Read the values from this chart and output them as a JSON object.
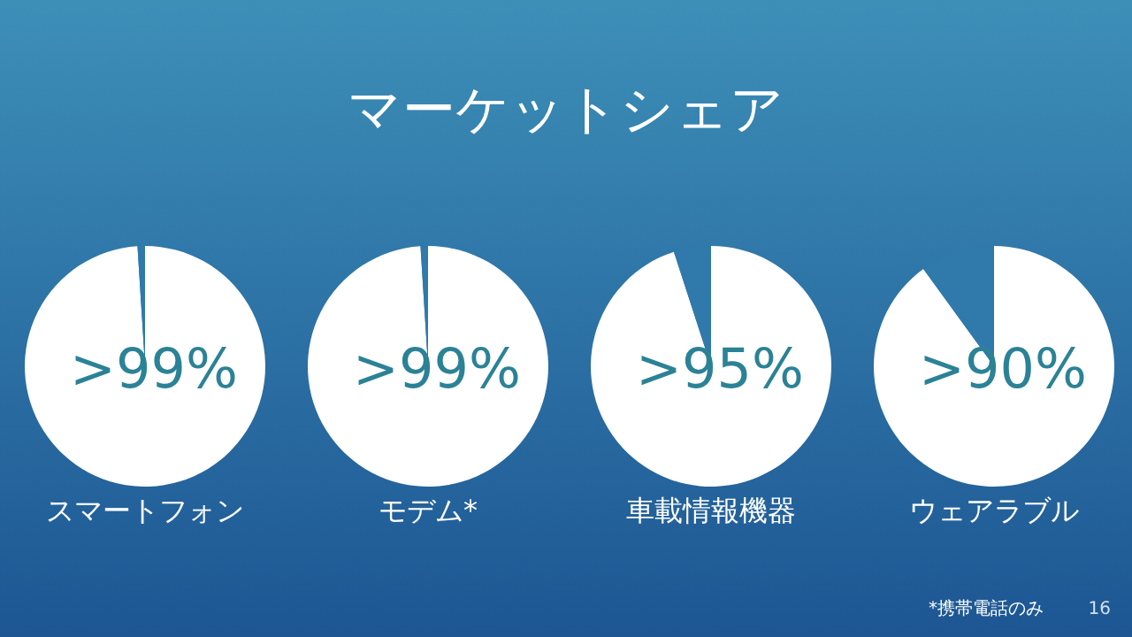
{
  "chart_data": [
    {
      "type": "pie",
      "title": "スマートフォン",
      "categories": [
        null,
        null
      ],
      "values": [
        99,
        1
      ],
      "colors": [
        "#ffffff",
        "#2f7aab"
      ],
      "value_labels": [
        ">99%",
        null
      ],
      "annotations": [
        "マーケットシェア"
      ]
    },
    {
      "type": "pie",
      "title": "モデム*",
      "categories": [
        null,
        null
      ],
      "values": [
        99,
        1
      ],
      "colors": [
        "#ffffff",
        "#2f7aab"
      ],
      "value_labels": [
        ">99%",
        null
      ]
    },
    {
      "type": "pie",
      "title": "車載情報機器",
      "categories": [
        null,
        null
      ],
      "values": [
        95,
        5
      ],
      "colors": [
        "#ffffff",
        "#2f7aab"
      ],
      "value_labels": [
        ">95%",
        null
      ]
    },
    {
      "type": "pie",
      "title": "ウェアラブル",
      "categories": [
        null,
        null
      ],
      "values": [
        90,
        10
      ],
      "colors": [
        "#ffffff",
        "#2f7aab"
      ],
      "value_labels": [
        ">90%",
        null
      ],
      "annotations": [
        "*携帯電話のみ",
        "16"
      ]
    }
  ]
}
